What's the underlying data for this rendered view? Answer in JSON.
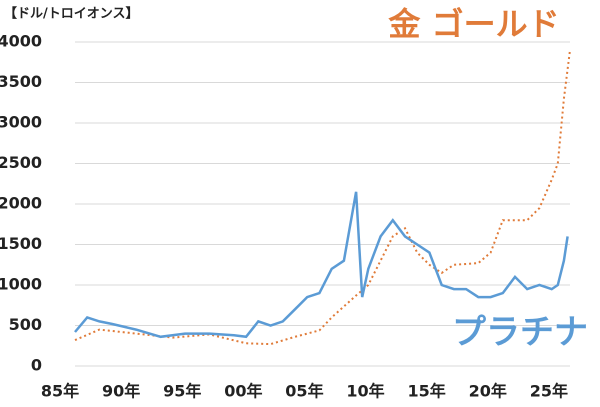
{
  "chart_data": {
    "type": "line",
    "title": "【ドル/トロイオンス】",
    "series": [
      {
        "name": "金 ゴールド",
        "color": "#e07b39",
        "dash": true,
        "x": [
          1985,
          1987,
          1990,
          1993,
          1996,
          1999,
          2001,
          2003,
          2005,
          2006,
          2008,
          2009,
          2011,
          2012,
          2013,
          2014,
          2015,
          2016,
          2018,
          2019,
          2020,
          2021,
          2022,
          2023,
          2024,
          2024.5,
          2025,
          2025.5
        ],
        "values": [
          320,
          450,
          400,
          350,
          390,
          280,
          270,
          360,
          440,
          600,
          870,
          1000,
          1600,
          1700,
          1400,
          1250,
          1150,
          1250,
          1270,
          1400,
          1800,
          1800,
          1800,
          1950,
          2300,
          2500,
          3300,
          3900
        ]
      },
      {
        "name": "プラチナ",
        "color": "#5b9bd5",
        "dash": false,
        "x": [
          1985,
          1986,
          1987,
          1988,
          1990,
          1992,
          1994,
          1996,
          1998,
          1999,
          2000,
          2001,
          2002,
          2003,
          2004,
          2005,
          2006,
          2007,
          2008,
          2008.5,
          2009,
          2010,
          2011,
          2012,
          2013,
          2014,
          2015,
          2016,
          2017,
          2018,
          2019,
          2020,
          2021,
          2022,
          2023,
          2024,
          2024.5,
          2025,
          2025.3
        ],
        "values": [
          420,
          600,
          550,
          520,
          450,
          360,
          400,
          400,
          380,
          360,
          550,
          500,
          550,
          700,
          850,
          900,
          1200,
          1300,
          2150,
          850,
          1200,
          1600,
          1800,
          1600,
          1500,
          1400,
          1000,
          950,
          950,
          850,
          850,
          900,
          1100,
          950,
          1000,
          950,
          1000,
          1300,
          1600
        ]
      }
    ],
    "xlim": [
      1985,
      2025.5
    ],
    "xticks": [
      {
        "value": 1985,
        "label": "85年"
      },
      {
        "value": 1990,
        "label": "90年"
      },
      {
        "value": 1995,
        "label": "95年"
      },
      {
        "value": 2000,
        "label": "00年"
      },
      {
        "value": 2005,
        "label": "05年"
      },
      {
        "value": 2010,
        "label": "10年"
      },
      {
        "value": 2015,
        "label": "15年"
      },
      {
        "value": 2020,
        "label": "20年"
      },
      {
        "value": 2025,
        "label": "25年"
      }
    ],
    "ylim": [
      0,
      4000
    ],
    "yticks": [
      0,
      500,
      1000,
      1500,
      2000,
      2500,
      3000,
      3500,
      4000
    ],
    "grid": true
  }
}
